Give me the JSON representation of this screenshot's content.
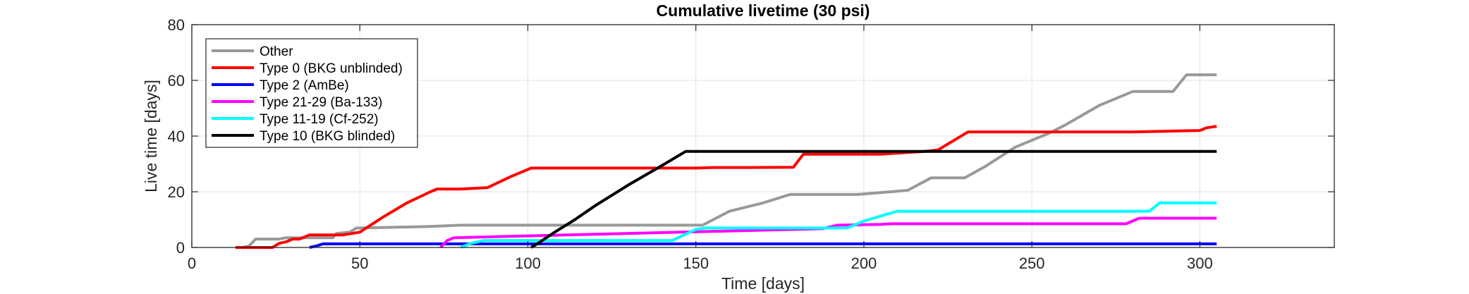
{
  "chart_data": {
    "type": "line",
    "title": "Cumulative livetime (30 psi)",
    "xlabel": "Time [days]",
    "ylabel": "Live time [days]",
    "xlim": [
      0,
      340
    ],
    "ylim": [
      0,
      80
    ],
    "xticks": [
      0,
      50,
      100,
      150,
      200,
      250,
      300
    ],
    "yticks": [
      0,
      20,
      40,
      60,
      80
    ],
    "grid": true,
    "legend_position": "top-left",
    "series": [
      {
        "name": "Other",
        "color": "#999999",
        "x": [
          15,
          17,
          19,
          26,
          28,
          42,
          43,
          47,
          49,
          70,
          80,
          100,
          152,
          160,
          170,
          178,
          198,
          208,
          213,
          220,
          230,
          236,
          245,
          255,
          260,
          270,
          280,
          292,
          296,
          305
        ],
        "y": [
          0,
          0.5,
          3,
          3,
          3.5,
          3.5,
          5,
          5.5,
          7,
          7.5,
          8,
          8,
          8,
          13,
          16,
          19,
          19,
          20,
          20.5,
          25,
          25,
          29,
          36,
          41,
          44,
          51,
          56,
          56,
          62,
          62
        ]
      },
      {
        "name": "Type 0 (BKG unblinded)",
        "color": "#ff0000",
        "x": [
          13,
          24,
          26,
          28,
          30,
          32,
          35,
          45,
          50,
          57,
          64,
          71,
          73,
          80,
          88,
          95,
          99,
          101,
          110,
          150,
          155,
          165,
          179,
          182,
          205,
          218,
          222,
          231,
          260,
          280,
          300,
          302,
          305
        ],
        "y": [
          0,
          0,
          1.5,
          2,
          3,
          3,
          4.5,
          4.5,
          5.5,
          11,
          16,
          20,
          21,
          21,
          21.5,
          25.5,
          27.5,
          28.5,
          28.5,
          28.5,
          28.7,
          28.7,
          28.8,
          33.5,
          33.5,
          34.5,
          35,
          41.5,
          41.5,
          41.5,
          42,
          43,
          43.5
        ]
      },
      {
        "name": "Type 2 (AmBe)",
        "color": "#0000ff",
        "x": [
          35,
          37,
          39,
          305
        ],
        "y": [
          0,
          0.5,
          1.3,
          1.3
        ]
      },
      {
        "name": "Type 21-29 (Ba-133)",
        "color": "#ff00ff",
        "x": [
          74,
          76,
          78,
          88,
          180,
          188,
          192,
          205,
          208,
          278,
          282,
          305
        ],
        "y": [
          0,
          2.5,
          3.5,
          3.8,
          6.5,
          6.8,
          8,
          8.3,
          8.5,
          8.5,
          10.5,
          10.5
        ]
      },
      {
        "name": "Type 11-19 (Cf-252)",
        "color": "#00ffff",
        "x": [
          80,
          83,
          87,
          143,
          150,
          153,
          185,
          195,
          200,
          207,
          210,
          285,
          288,
          305
        ],
        "y": [
          0,
          1.5,
          2.5,
          2.5,
          6.5,
          7,
          7,
          7,
          9.5,
          12,
          13,
          13,
          16,
          16
        ]
      },
      {
        "name": "Type 10 (BKG blinded)",
        "color": "#000000",
        "x": [
          101,
          103,
          108,
          114,
          120,
          130,
          140,
          147,
          305
        ],
        "y": [
          0,
          1.5,
          5.5,
          10,
          15,
          22.5,
          29.5,
          34.5,
          34.5
        ]
      }
    ]
  }
}
